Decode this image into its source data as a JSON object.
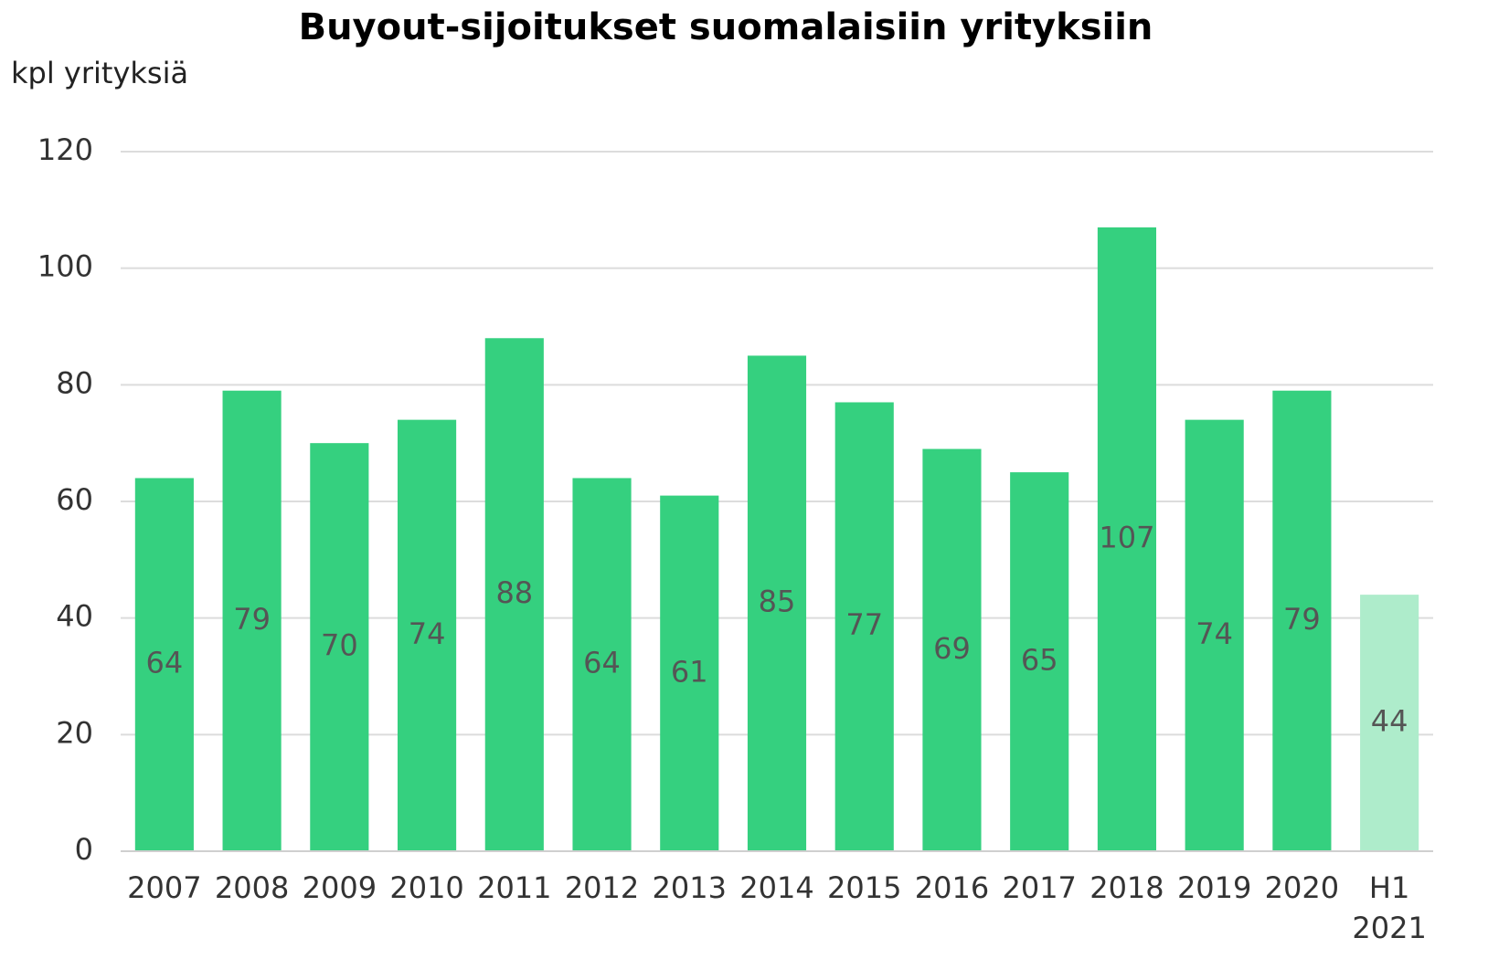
{
  "chart_data": {
    "type": "bar",
    "title": "Buyout-sijoitukset suomalaisiin yrityksiin",
    "y_axis_label": "kpl yrityksiä",
    "categories": [
      "2007",
      "2008",
      "2009",
      "2010",
      "2011",
      "2012",
      "2013",
      "2014",
      "2015",
      "2016",
      "2017",
      "2018",
      "2019",
      "2020",
      "H1 2021"
    ],
    "values": [
      64,
      79,
      70,
      74,
      88,
      64,
      61,
      85,
      77,
      69,
      65,
      107,
      74,
      79,
      44
    ],
    "colors": [
      "#35d07f",
      "#35d07f",
      "#35d07f",
      "#35d07f",
      "#35d07f",
      "#35d07f",
      "#35d07f",
      "#35d07f",
      "#35d07f",
      "#35d07f",
      "#35d07f",
      "#35d07f",
      "#35d07f",
      "#35d07f",
      "#aeeccb"
    ],
    "ylim": [
      0,
      120
    ],
    "yticks": [
      0,
      20,
      40,
      60,
      80,
      100,
      120
    ],
    "grid": true
  }
}
